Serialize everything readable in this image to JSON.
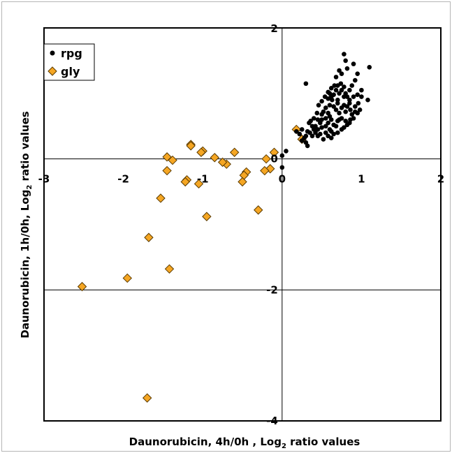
{
  "chart_data": {
    "type": "scatter",
    "xlabel": "Daunorubicin, 4h/0h , Log",
    "xlabel_sub": "2",
    "xlabel_tail": " ratio values",
    "ylabel": "Daunorubicin, 1h/0h, Log",
    "ylabel_sub": "2",
    "ylabel_tail": " ratio values",
    "xlim": [
      -3,
      2
    ],
    "ylim": [
      -4,
      2
    ],
    "x_ticks": [
      -3,
      -2,
      -1,
      0,
      1,
      2
    ],
    "y_ticks": [
      -4,
      -2,
      0,
      2
    ],
    "x_tick_labels": [
      "-3",
      "-2",
      "-1",
      "0",
      "1",
      "2"
    ],
    "y_tick_labels": [
      "-4",
      "-2",
      "0",
      "2"
    ],
    "grid": "reference lines at x=0, y=0, y=-2",
    "legend_position": "top-left",
    "series": [
      {
        "name": "rpg",
        "marker": "circle",
        "color": "#000000",
        "points": [
          [
            0.78,
            1.6
          ],
          [
            1.1,
            1.4
          ],
          [
            0.95,
            1.3
          ],
          [
            0.3,
            1.15
          ],
          [
            0.92,
            1.2
          ],
          [
            0.9,
            1.45
          ],
          [
            0.82,
            1.38
          ],
          [
            0.8,
            1.5
          ],
          [
            0.72,
            1.35
          ],
          [
            0.75,
            1.3
          ],
          [
            0.68,
            1.25
          ],
          [
            0.88,
            1.12
          ],
          [
            0.85,
            1.05
          ],
          [
            0.8,
            1.0
          ],
          [
            1.0,
            1.05
          ],
          [
            1.0,
            0.95
          ],
          [
            1.08,
            0.9
          ],
          [
            0.95,
            0.98
          ],
          [
            0.9,
            0.95
          ],
          [
            0.85,
            0.9
          ],
          [
            0.78,
            0.95
          ],
          [
            0.75,
            1.05
          ],
          [
            0.72,
            1.0
          ],
          [
            0.68,
            1.05
          ],
          [
            0.65,
            0.98
          ],
          [
            0.63,
            0.9
          ],
          [
            0.62,
            0.95
          ],
          [
            0.6,
            1.0
          ],
          [
            0.58,
            0.92
          ],
          [
            0.7,
            0.9
          ],
          [
            0.7,
            0.85
          ],
          [
            0.78,
            0.82
          ],
          [
            0.82,
            0.8
          ],
          [
            0.86,
            0.75
          ],
          [
            0.92,
            0.72
          ],
          [
            0.88,
            0.68
          ],
          [
            0.8,
            0.72
          ],
          [
            0.75,
            0.78
          ],
          [
            0.72,
            0.7
          ],
          [
            0.68,
            0.75
          ],
          [
            0.65,
            0.8
          ],
          [
            0.6,
            0.82
          ],
          [
            0.55,
            0.78
          ],
          [
            0.52,
            0.72
          ],
          [
            0.58,
            0.7
          ],
          [
            0.6,
            0.65
          ],
          [
            0.62,
            0.6
          ],
          [
            0.58,
            0.55
          ],
          [
            0.55,
            0.62
          ],
          [
            0.5,
            0.68
          ],
          [
            0.5,
            0.6
          ],
          [
            0.48,
            0.55
          ],
          [
            0.45,
            0.6
          ],
          [
            0.42,
            0.5
          ],
          [
            0.45,
            0.45
          ],
          [
            0.5,
            0.48
          ],
          [
            0.55,
            0.5
          ],
          [
            0.6,
            0.45
          ],
          [
            0.65,
            0.52
          ],
          [
            0.7,
            0.58
          ],
          [
            0.72,
            0.6
          ],
          [
            0.75,
            0.62
          ],
          [
            0.8,
            0.58
          ],
          [
            0.85,
            0.55
          ],
          [
            0.68,
            0.5
          ],
          [
            0.62,
            0.42
          ],
          [
            0.55,
            0.4
          ],
          [
            0.48,
            0.38
          ],
          [
            0.42,
            0.4
          ],
          [
            0.4,
            0.45
          ],
          [
            0.38,
            0.5
          ],
          [
            0.35,
            0.4
          ],
          [
            0.32,
            0.42
          ],
          [
            0.3,
            0.35
          ],
          [
            0.28,
            0.32
          ],
          [
            0.3,
            0.25
          ],
          [
            0.32,
            0.2
          ],
          [
            0.25,
            0.28
          ],
          [
            0.52,
            0.3
          ],
          [
            0.58,
            0.35
          ],
          [
            0.62,
            0.32
          ],
          [
            0.65,
            0.38
          ],
          [
            0.7,
            0.4
          ],
          [
            0.75,
            0.45
          ],
          [
            0.78,
            0.48
          ],
          [
            0.82,
            0.52
          ],
          [
            0.86,
            0.6
          ],
          [
            0.9,
            0.62
          ],
          [
            0.95,
            0.7
          ],
          [
            0.98,
            0.75
          ],
          [
            0.92,
            0.8
          ],
          [
            0.96,
            0.85
          ],
          [
            0.85,
            0.85
          ],
          [
            0.82,
            0.95
          ],
          [
            0.78,
            1.1
          ],
          [
            0.74,
            1.15
          ],
          [
            0.7,
            1.12
          ],
          [
            0.66,
            1.12
          ],
          [
            0.62,
            1.08
          ],
          [
            0.58,
            1.02
          ],
          [
            0.54,
            0.95
          ],
          [
            0.5,
            0.88
          ],
          [
            0.46,
            0.82
          ],
          [
            0.44,
            0.7
          ],
          [
            0.4,
            0.62
          ],
          [
            0.36,
            0.58
          ],
          [
            0.34,
            0.55
          ],
          [
            0.38,
            0.35
          ],
          [
            0.45,
            0.35
          ],
          [
            0.05,
            0.12
          ],
          [
            0.0,
            0.05
          ],
          [
            0.0,
            -0.13
          ],
          [
            0.25,
            0.45
          ],
          [
            0.22,
            0.38
          ],
          [
            0.18,
            0.42
          ]
        ]
      },
      {
        "name": "gly",
        "marker": "diamond",
        "color": "#f5a623",
        "points": [
          [
            0.18,
            0.45
          ],
          [
            0.25,
            0.3
          ],
          [
            -0.1,
            0.1
          ],
          [
            -0.2,
            0.0
          ],
          [
            -0.15,
            -0.15
          ],
          [
            -0.22,
            -0.18
          ],
          [
            -0.45,
            -0.2
          ],
          [
            -0.48,
            -0.25
          ],
          [
            -0.5,
            -0.35
          ],
          [
            -0.6,
            0.1
          ],
          [
            -0.7,
            -0.08
          ],
          [
            -0.75,
            -0.05
          ],
          [
            -0.85,
            0.02
          ],
          [
            -1.0,
            0.12
          ],
          [
            -1.02,
            0.1
          ],
          [
            -1.15,
            0.22
          ],
          [
            -1.15,
            0.2
          ],
          [
            -1.05,
            -0.38
          ],
          [
            -1.2,
            -0.32
          ],
          [
            -1.22,
            -0.35
          ],
          [
            -1.38,
            -0.02
          ],
          [
            -1.45,
            0.03
          ],
          [
            -1.45,
            -0.18
          ],
          [
            -1.53,
            -0.6
          ],
          [
            -1.68,
            -1.2
          ],
          [
            -1.42,
            -1.68
          ],
          [
            -0.95,
            -0.88
          ],
          [
            -0.3,
            -0.78
          ],
          [
            -1.95,
            -1.82
          ],
          [
            -2.52,
            -1.95
          ],
          [
            -1.7,
            -3.65
          ]
        ]
      }
    ]
  }
}
